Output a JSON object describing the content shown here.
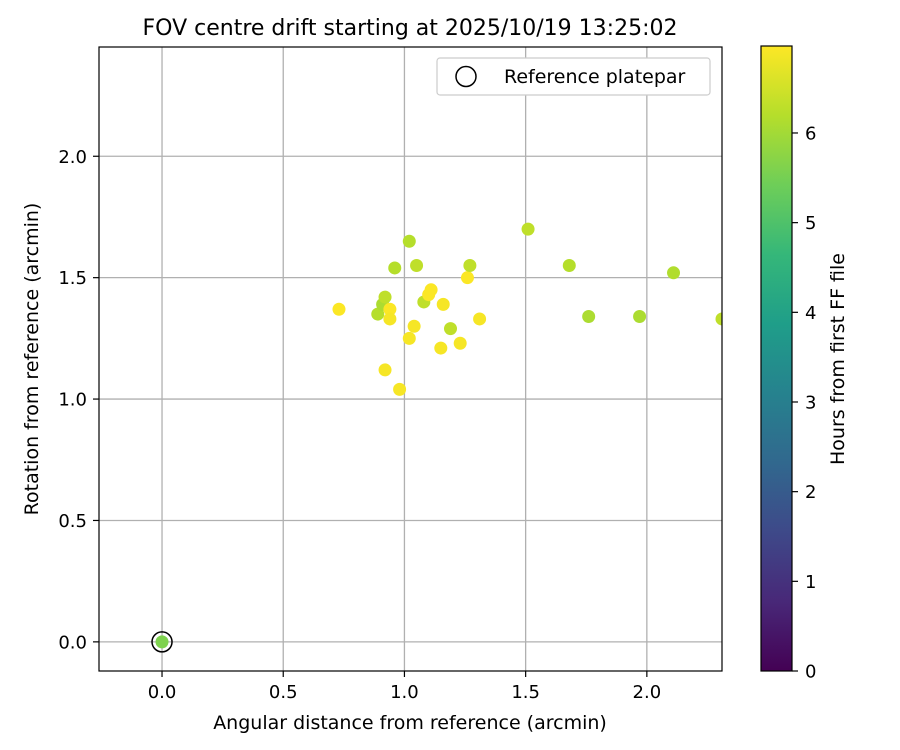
{
  "chart_data": {
    "type": "scatter",
    "title": "FOV centre drift starting at 2025/10/19 13:25:02",
    "xlabel": "Angular distance from reference (arcmin)",
    "ylabel": "Rotation from reference (arcmin)",
    "xlim": [
      -0.26,
      2.31
    ],
    "ylim": [
      -0.12,
      2.45
    ],
    "xticks": [
      0.0,
      0.5,
      1.0,
      1.5,
      2.0
    ],
    "xtick_labels": [
      "0.0",
      "0.5",
      "1.0",
      "1.5",
      "2.0"
    ],
    "yticks": [
      0.0,
      0.5,
      1.0,
      1.5,
      2.0
    ],
    "ytick_labels": [
      "0.0",
      "0.5",
      "1.0",
      "1.5",
      "2.0"
    ],
    "grid": true,
    "legend": {
      "position": "top-right",
      "entries": [
        "Reference platepar"
      ]
    },
    "reference_point": {
      "x": 0.0,
      "y": 0.0,
      "marker": "open-circle"
    },
    "colorbar": {
      "label": "Hours from first FF file",
      "range": [
        0,
        6.97
      ],
      "ticks": [
        0,
        1,
        2,
        3,
        4,
        5,
        6
      ],
      "tick_labels": [
        "0",
        "1",
        "2",
        "3",
        "4",
        "5",
        "6"
      ],
      "colormap_stops": [
        "#440154",
        "#482878",
        "#3e4989",
        "#31688e",
        "#26828e",
        "#1f9e89",
        "#35b779",
        "#6ece58",
        "#b5de2b",
        "#fde725"
      ]
    },
    "points": [
      {
        "x": 0.0,
        "y": 0.0,
        "hours": 5.6
      },
      {
        "x": 0.73,
        "y": 1.37,
        "hours": 6.95
      },
      {
        "x": 0.89,
        "y": 1.35,
        "hours": 6.2
      },
      {
        "x": 0.91,
        "y": 1.39,
        "hours": 6.1
      },
      {
        "x": 0.92,
        "y": 1.42,
        "hours": 6.3
      },
      {
        "x": 0.92,
        "y": 1.12,
        "hours": 6.9
      },
      {
        "x": 0.94,
        "y": 1.37,
        "hours": 6.95
      },
      {
        "x": 0.94,
        "y": 1.33,
        "hours": 6.9
      },
      {
        "x": 0.96,
        "y": 1.54,
        "hours": 6.2
      },
      {
        "x": 0.98,
        "y": 1.04,
        "hours": 6.9
      },
      {
        "x": 1.02,
        "y": 1.65,
        "hours": 6.2
      },
      {
        "x": 1.02,
        "y": 1.25,
        "hours": 6.9
      },
      {
        "x": 1.04,
        "y": 1.3,
        "hours": 6.9
      },
      {
        "x": 1.05,
        "y": 1.55,
        "hours": 6.3
      },
      {
        "x": 1.08,
        "y": 1.4,
        "hours": 6.3
      },
      {
        "x": 1.1,
        "y": 1.43,
        "hours": 6.95
      },
      {
        "x": 1.11,
        "y": 1.45,
        "hours": 6.95
      },
      {
        "x": 1.15,
        "y": 1.21,
        "hours": 6.9
      },
      {
        "x": 1.16,
        "y": 1.39,
        "hours": 6.9
      },
      {
        "x": 1.19,
        "y": 1.29,
        "hours": 6.3
      },
      {
        "x": 1.23,
        "y": 1.23,
        "hours": 6.9
      },
      {
        "x": 1.26,
        "y": 1.5,
        "hours": 6.95
      },
      {
        "x": 1.27,
        "y": 1.55,
        "hours": 6.3
      },
      {
        "x": 1.31,
        "y": 1.33,
        "hours": 6.9
      },
      {
        "x": 1.51,
        "y": 1.7,
        "hours": 6.3
      },
      {
        "x": 1.68,
        "y": 1.55,
        "hours": 6.2
      },
      {
        "x": 1.76,
        "y": 1.34,
        "hours": 6.1
      },
      {
        "x": 1.97,
        "y": 1.34,
        "hours": 6.1
      },
      {
        "x": 2.11,
        "y": 1.52,
        "hours": 6.15
      },
      {
        "x": 2.31,
        "y": 1.33,
        "hours": 6.3
      }
    ]
  }
}
